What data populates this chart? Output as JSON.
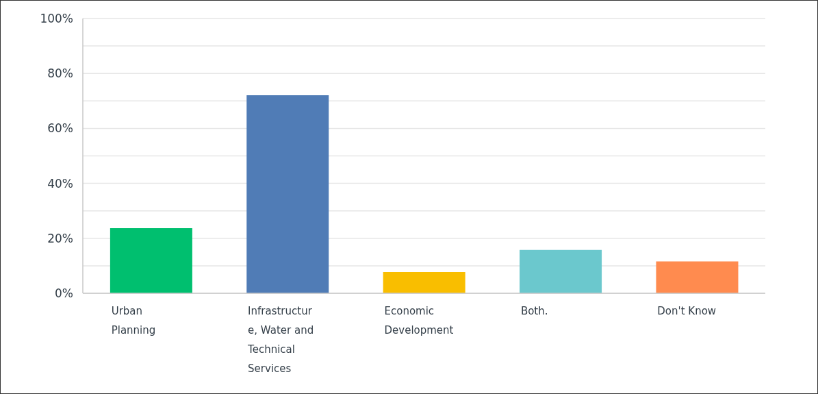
{
  "chart_data": {
    "type": "bar",
    "categories": [
      "Urban Planning",
      "Infrastructure, Water and Technical Services",
      "Economic Development",
      "Both.",
      "Don't Know"
    ],
    "values": [
      23.7,
      72.1,
      7.7,
      15.8,
      11.6
    ],
    "colors": [
      "#00bf6f",
      "#507cb6",
      "#f9be00",
      "#6bc8cd",
      "#ff8b4f"
    ],
    "ylim": [
      0,
      100
    ],
    "yticks": [
      {
        "value": 0,
        "label": "0%"
      },
      {
        "value": 10,
        "label": null
      },
      {
        "value": 20,
        "label": "20%"
      },
      {
        "value": 30,
        "label": null
      },
      {
        "value": 40,
        "label": "40%"
      },
      {
        "value": 50,
        "label": null
      },
      {
        "value": 60,
        "label": "60%"
      },
      {
        "value": 70,
        "label": null
      },
      {
        "value": 80,
        "label": "80%"
      },
      {
        "value": 90,
        "label": null
      },
      {
        "value": 100,
        "label": "100%"
      }
    ],
    "grid": "y"
  }
}
